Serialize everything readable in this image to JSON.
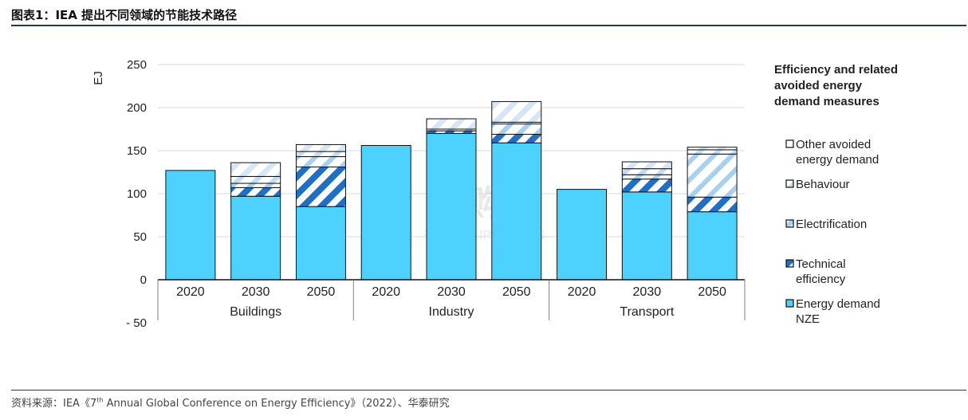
{
  "header": {
    "title_prefix": "图表1：",
    "title_text": "IEA 提出不同领域的节能技术路径"
  },
  "footer": {
    "source_prefix": "资料来源：IEA《7",
    "source_sup": "th",
    "source_rest": " Annual Global Conference on Energy Efficiency》（2022）、华泰研究"
  },
  "watermark": {
    "main": "并购家",
    "sub": "行业报告 IPOIPO.CN"
  },
  "colors": {
    "nze": "#4dd2ff",
    "technical": "#1f6fc5",
    "electrification": "#a9cfee",
    "behaviour": "#c2dcf2",
    "other": "#d6e6f5",
    "grid": "#d9d9d9",
    "axis": "#7f7f7f"
  },
  "chart_data": {
    "type": "bar",
    "stacked": true,
    "ylabel": "EJ",
    "ylim": [
      -50,
      250
    ],
    "yticks": [
      250,
      200,
      150,
      100,
      50,
      0,
      -50
    ],
    "grid": true,
    "legend_title": "Efficiency and related avoided energy demand measures",
    "legend_placement": "right",
    "groups": [
      "Buildings",
      "Industry",
      "Transport"
    ],
    "categories": [
      "2020",
      "2030",
      "2050",
      "2020",
      "2030",
      "2050",
      "2020",
      "2030",
      "2050"
    ],
    "series": [
      {
        "key": "nze",
        "name": "Energy demand NZE",
        "pattern": "solid",
        "values": [
          127,
          97,
          85,
          156,
          170,
          159,
          105,
          102,
          79
        ]
      },
      {
        "key": "technical",
        "name": "Technical efficiency",
        "pattern": "dark-diagonal",
        "values": [
          0,
          10,
          46,
          0,
          3,
          10,
          0,
          15,
          17
        ]
      },
      {
        "key": "electrification",
        "name": "Electrification",
        "pattern": "light-diagonal",
        "values": [
          0,
          5,
          12,
          0,
          2,
          12,
          0,
          5,
          50
        ]
      },
      {
        "key": "behaviour",
        "name": "Behaviour",
        "pattern": "light-diagonal",
        "values": [
          0,
          8,
          6,
          0,
          0,
          2,
          0,
          7,
          5
        ]
      },
      {
        "key": "other",
        "name": "Other avoided energy demand",
        "pattern": "light-diagonal",
        "values": [
          0,
          16,
          8,
          0,
          12,
          24,
          0,
          8,
          3
        ]
      }
    ],
    "legend_order": [
      "other",
      "behaviour",
      "electrification",
      "technical",
      "nze"
    ],
    "legend_labels": {
      "other": [
        "Other avoided",
        "energy demand"
      ],
      "behaviour": [
        "Behaviour"
      ],
      "electrification": [
        "Electrification"
      ],
      "technical": [
        "Technical",
        "efficiency"
      ],
      "nze": [
        "Energy demand",
        "NZE"
      ]
    },
    "legend_title_lines": [
      "Efficiency and related",
      "avoided energy",
      "demand measures"
    ]
  }
}
